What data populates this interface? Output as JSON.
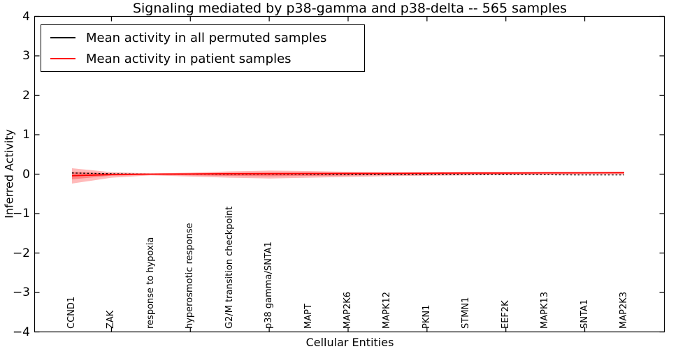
{
  "chart_data": {
    "type": "line",
    "title": "Signaling mediated by p38-gamma and p38-delta -- 565 samples",
    "xlabel": "Cellular Entities",
    "ylabel": "Inferred Activity",
    "ylim": [
      -4,
      4
    ],
    "yticks": [
      4,
      3,
      2,
      1,
      0,
      -1,
      -2,
      -3,
      -4
    ],
    "grid": false,
    "categories": [
      "CCND1",
      "ZAK",
      "response to hypoxia",
      "hyperosmotic response",
      "G2/M transition checkpoint",
      "p38 gamma/SNTA1",
      "MAPT",
      "MAP2K6",
      "MAPK12",
      "PKN1",
      "STMN1",
      "EEF2K",
      "MAPK13",
      "SNTA1",
      "MAP2K3"
    ],
    "series": [
      {
        "name": "Mean activity in all permuted samples",
        "color": "#000000",
        "values": [
          0.03,
          0.01,
          0.0,
          0.0,
          -0.005,
          -0.005,
          -0.005,
          -0.01,
          -0.01,
          -0.01,
          -0.01,
          -0.015,
          -0.015,
          -0.02,
          -0.02
        ]
      },
      {
        "name": "Mean activity in patient samples",
        "color": "#ff0000",
        "values": [
          -0.04,
          -0.01,
          0.0,
          0.005,
          0.01,
          0.01,
          0.015,
          0.02,
          0.02,
          0.025,
          0.03,
          0.03,
          0.035,
          0.035,
          0.04
        ]
      }
    ],
    "bands": [
      {
        "name": "patient-samples-outer-band",
        "color": "#ff0000",
        "opacity": 0.27,
        "upper": [
          0.15,
          0.05,
          0.02,
          0.04,
          0.07,
          0.09,
          0.08,
          0.06,
          0.05,
          0.05,
          0.05,
          0.05,
          0.05,
          0.05,
          0.05
        ],
        "lower": [
          -0.24,
          -0.09,
          -0.03,
          -0.06,
          -0.09,
          -0.11,
          -0.09,
          -0.07,
          -0.05,
          -0.04,
          -0.03,
          -0.02,
          -0.02,
          -0.01,
          -0.01
        ]
      },
      {
        "name": "patient-samples-inner-band",
        "color": "#ff0000",
        "opacity": 0.3,
        "upper": [
          0.06,
          0.02,
          0.01,
          0.02,
          0.035,
          0.045,
          0.04,
          0.03,
          0.03,
          0.03,
          0.03,
          0.03,
          0.035,
          0.04,
          0.04
        ],
        "lower": [
          -0.13,
          -0.04,
          -0.015,
          -0.03,
          -0.045,
          -0.055,
          -0.045,
          -0.035,
          -0.02,
          -0.01,
          0.0,
          0.0,
          0.005,
          0.01,
          0.01
        ]
      }
    ],
    "legend": {
      "position": "upper-left",
      "items": [
        {
          "label": "Mean activity in all permuted samples",
          "color": "#000000"
        },
        {
          "label": "Mean activity in patient samples",
          "color": "#ff0000"
        }
      ]
    }
  }
}
